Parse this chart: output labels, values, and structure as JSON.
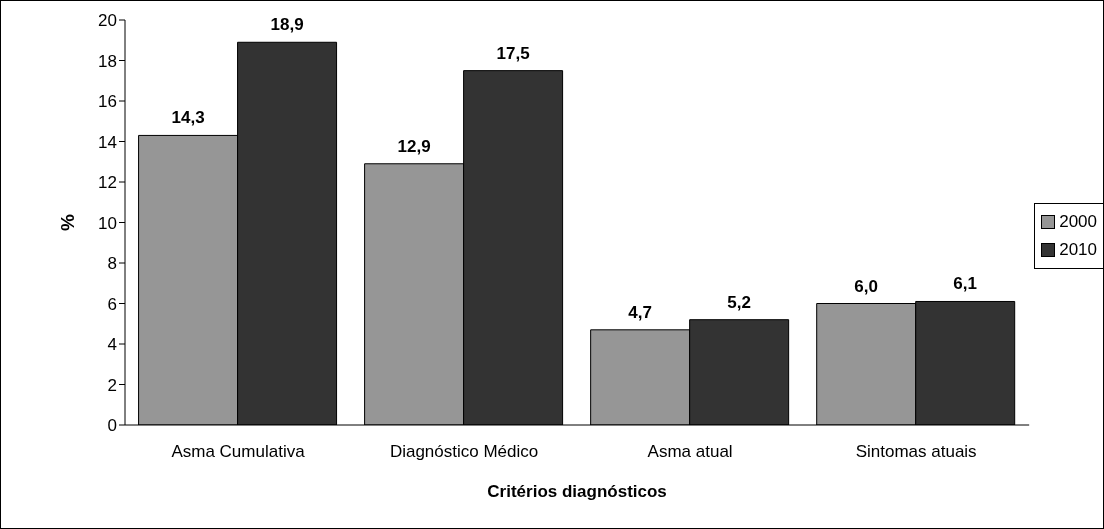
{
  "chart_data": {
    "type": "bar",
    "xlabel": "Critérios diagnósticos",
    "ylabel": "%",
    "categories": [
      "Asma Cumulativa",
      "Diagnóstico Médico",
      "Asma atual",
      "Sintomas atuais"
    ],
    "series": [
      {
        "name": "2000",
        "color": "#969696",
        "values": [
          14.3,
          12.9,
          4.7,
          6.0
        ],
        "value_labels": [
          "14,3",
          "12,9",
          "4,7",
          "6,0"
        ]
      },
      {
        "name": "2010",
        "color": "#333333",
        "values": [
          18.9,
          17.5,
          5.2,
          6.1
        ],
        "value_labels": [
          "18,9",
          "17,5",
          "5,2",
          "6,1"
        ]
      }
    ],
    "ylim": [
      0,
      20
    ],
    "yticks": [
      0,
      2,
      4,
      6,
      8,
      10,
      12,
      14,
      16,
      18,
      20
    ],
    "legend": "right"
  }
}
